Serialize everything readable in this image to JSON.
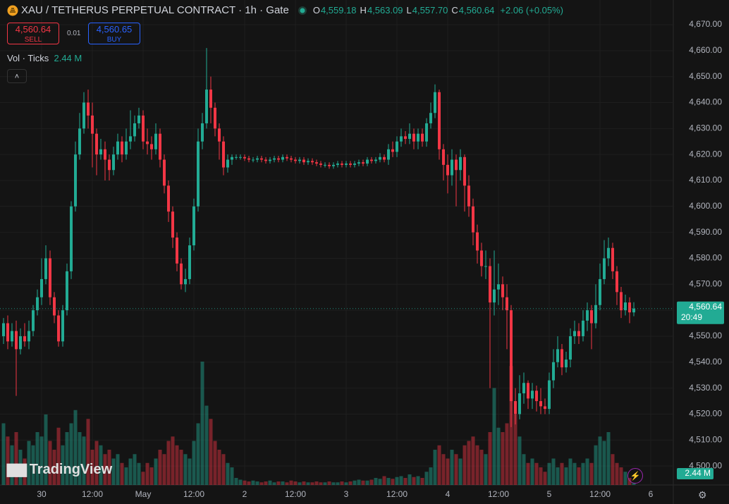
{
  "chart_data": {
    "type": "candlestick",
    "title": "XAU / TETHERUS PERPETUAL CONTRACT · 1h · Gate",
    "ohlc_labels": [
      {
        "key": "O",
        "value": "4,559.18"
      },
      {
        "key": "H",
        "value": "4,563.09"
      },
      {
        "key": "L",
        "value": "4,557.70"
      },
      {
        "key": "C",
        "value": "4,560.64"
      }
    ],
    "change_label": "+2.06 (+0.05%)",
    "volume_title": "Vol · Ticks",
    "volume_label": "2.44 M",
    "last_price_label": "4,560.64",
    "countdown": "20:49",
    "up_color": "#22ab94",
    "down_color": "#f23645",
    "grid": true,
    "ylim": [
      4492.7,
      4679.5
    ],
    "yticks": [
      {
        "value": 4500,
        "label": "4,500.00"
      },
      {
        "value": 4510,
        "label": "4,510.00"
      },
      {
        "value": 4520,
        "label": "4,520.00"
      },
      {
        "value": 4530,
        "label": "4,530.00"
      },
      {
        "value": 4540,
        "label": "4,540.00"
      },
      {
        "value": 4550,
        "label": "4,550.00"
      },
      {
        "value": 4560,
        "label": "4,560.00"
      },
      {
        "value": 4570,
        "label": "4,570.00"
      },
      {
        "value": 4580,
        "label": "4,580.00"
      },
      {
        "value": 4590,
        "label": "4,590.00"
      },
      {
        "value": 4600,
        "label": "4,600.00"
      },
      {
        "value": 4610,
        "label": "4,610.00"
      },
      {
        "value": 4620,
        "label": "4,620.00"
      },
      {
        "value": 4630,
        "label": "4,630.00"
      },
      {
        "value": 4640,
        "label": "4,640.00"
      },
      {
        "value": 4650,
        "label": "4,650.00"
      },
      {
        "value": 4660,
        "label": "4,660.00"
      },
      {
        "value": 4670,
        "label": "4,670.00"
      }
    ],
    "categories": [
      null,
      null,
      null,
      null,
      null,
      null,
      null,
      null,
      null,
      "30",
      null,
      null,
      null,
      null,
      null,
      null,
      null,
      null,
      null,
      null,
      null,
      "12:00",
      null,
      null,
      null,
      null,
      null,
      null,
      null,
      null,
      null,
      null,
      null,
      "May",
      null,
      null,
      null,
      null,
      null,
      null,
      null,
      null,
      null,
      null,
      null,
      "12:00",
      null,
      null,
      null,
      null,
      null,
      null,
      null,
      null,
      null,
      null,
      null,
      "2",
      null,
      null,
      null,
      null,
      null,
      null,
      null,
      null,
      null,
      null,
      null,
      "12:00",
      null,
      null,
      null,
      null,
      null,
      null,
      null,
      null,
      null,
      null,
      null,
      "3",
      null,
      null,
      null,
      null,
      null,
      null,
      null,
      null,
      null,
      null,
      null,
      "12:00",
      null,
      null,
      null,
      null,
      null,
      null,
      null,
      null,
      null,
      null,
      null,
      "4",
      null,
      null,
      null,
      null,
      null,
      null,
      null,
      null,
      null,
      null,
      null,
      "12:00",
      null,
      null,
      null,
      null,
      null,
      null,
      null,
      null,
      null,
      null,
      null,
      "5",
      null,
      null,
      null,
      null,
      null,
      null,
      null,
      null,
      null,
      null,
      null,
      "12:00",
      null,
      null,
      null,
      null,
      null,
      null,
      null,
      null,
      null,
      null,
      null,
      "6"
    ],
    "open": [
      4550,
      4555,
      4548,
      4552,
      4545,
      4550,
      4548,
      4552,
      4560,
      4565,
      4572,
      4580,
      4565,
      4558,
      4548,
      4560,
      4575,
      4600,
      4620,
      4630,
      4640,
      4635,
      4628,
      4620,
      4622,
      4618,
      4614,
      4620,
      4625,
      4620,
      4625,
      4627,
      4632,
      4635,
      4625,
      4624,
      4622,
      4628,
      4618,
      4608,
      4598,
      4588,
      4578,
      4570,
      4572,
      4585,
      4600,
      4625,
      4632,
      4645,
      4638,
      4630,
      4625,
      4615,
      4618,
      4619,
      4619,
      4619,
      4618.5,
      4618,
      4618,
      4618.5,
      4618,
      4617.5,
      4618,
      4618.5,
      4618,
      4619,
      4618.5,
      4618,
      4617.5,
      4618,
      4617,
      4617.5,
      4617,
      4616.5,
      4616,
      4616,
      4615.5,
      4616,
      4616.5,
      4616,
      4616.5,
      4616,
      4616.5,
      4617,
      4616.5,
      4618,
      4617.5,
      4618,
      4619,
      4618,
      4622,
      4621,
      4625,
      4627,
      4626,
      4628,
      4625,
      4628,
      4625,
      4632,
      4636,
      4644,
      4622,
      4616,
      4612,
      4618,
      4614,
      4619,
      4608,
      4600,
      4590,
      4583,
      4577,
      4577,
      4563,
      4568,
      4570,
      4565,
      4560,
      4525,
      4520,
      4528,
      4532,
      4526,
      4529,
      4525,
      4523,
      4522,
      4533,
      4540,
      4545,
      4538,
      4541,
      4550,
      4552,
      4550,
      4556,
      4560,
      4555,
      4562,
      4572,
      4580,
      4584,
      4575,
      4567,
      4560,
      4563,
      4559.18,
      null,
      null,
      null,
      null
    ],
    "high": [
      4557,
      4558,
      4555,
      4556,
      4553,
      4555,
      4556,
      4562,
      4568,
      4580,
      4585,
      4583,
      4567,
      4560,
      4562,
      4578,
      4602,
      4625,
      4636,
      4644,
      4645,
      4640,
      4630,
      4626,
      4625,
      4620,
      4623,
      4628,
      4627,
      4630,
      4637,
      4635,
      4638,
      4637,
      4630,
      4627,
      4632,
      4630,
      4620,
      4610,
      4600,
      4590,
      4580,
      4576,
      4588,
      4603,
      4630,
      4636,
      4661,
      4650,
      4640,
      4632,
      4627,
      4620,
      4620,
      4620,
      4620,
      4620,
      4619.5,
      4619,
      4619.5,
      4619.5,
      4619,
      4619,
      4619.5,
      4619.5,
      4620,
      4620,
      4619.5,
      4619,
      4619,
      4619,
      4618.5,
      4618.5,
      4618,
      4617.5,
      4617,
      4617,
      4617,
      4617.5,
      4617.5,
      4617.5,
      4617.5,
      4617.5,
      4618,
      4618,
      4619,
      4619,
      4619,
      4620.5,
      4620,
      4624,
      4625,
      4627,
      4630,
      4629,
      4632,
      4630,
      4630,
      4630,
      4634,
      4640,
      4647,
      4645,
      4624,
      4620,
      4622,
      4620,
      4622,
      4620,
      4612,
      4603,
      4593,
      4586,
      4583,
      4580,
      4583,
      4578,
      4573,
      4570,
      4562,
      4530,
      4535,
      4536,
      4533,
      4532,
      4531,
      4530,
      4526,
      4536,
      4545,
      4550,
      4547,
      4544,
      4553,
      4556,
      4555,
      4560,
      4563,
      4562,
      4570,
      4578,
      4587,
      4588,
      4586,
      4577,
      4569,
      4566,
      4565,
      4563.09,
      null,
      null,
      null,
      null
    ],
    "low": [
      4547,
      4545,
      4546,
      4527,
      4543,
      4546,
      4545,
      4550,
      4558,
      4562,
      4570,
      4562,
      4555,
      4546,
      4546,
      4558,
      4572,
      4598,
      4618,
      4628,
      4630,
      4615,
      4612,
      4618,
      4610,
      4610,
      4612,
      4618,
      4617,
      4618,
      4622,
      4625,
      4630,
      4622,
      4620,
      4618,
      4620,
      4615,
      4605,
      4594,
      4584,
      4575,
      4568,
      4567,
      4570,
      4583,
      4598,
      4622,
      4630,
      4632,
      4627,
      4618,
      4612,
      4613,
      4616,
      4618,
      4618,
      4617.5,
      4617,
      4617,
      4617,
      4617,
      4616.5,
      4616.5,
      4617,
      4617,
      4617,
      4617.5,
      4617,
      4616.5,
      4616.5,
      4616,
      4616,
      4616,
      4615.5,
      4615,
      4615,
      4614.5,
      4614.5,
      4615,
      4615,
      4615,
      4615,
      4615,
      4615.5,
      4615.5,
      4615.5,
      4616.5,
      4616.5,
      4617,
      4617,
      4616,
      4619,
      4619,
      4623,
      4624,
      4624,
      4622,
      4622,
      4623,
      4623,
      4630,
      4634,
      4618,
      4610,
      4605,
      4608,
      4600,
      4610,
      4598,
      4596,
      4585,
      4578,
      4573,
      4572,
      4530,
      4558,
      4562,
      4560,
      4545,
      4515,
      4516,
      4518,
      4524,
      4522,
      4522,
      4521,
      4520,
      4520,
      4520,
      4530,
      4538,
      4535,
      4536,
      4538,
      4547,
      4547,
      4548,
      4552,
      4545,
      4553,
      4560,
      4570,
      4577,
      4572,
      4562,
      4557,
      4558,
      4555,
      4557.7,
      null,
      null,
      null,
      null
    ],
    "close": [
      4555,
      4548,
      4552,
      4545,
      4550,
      4548,
      4552,
      4560,
      4565,
      4572,
      4580,
      4565,
      4558,
      4548,
      4560,
      4575,
      4600,
      4620,
      4630,
      4640,
      4635,
      4628,
      4620,
      4622,
      4618,
      4614,
      4620,
      4625,
      4620,
      4625,
      4627,
      4632,
      4635,
      4625,
      4624,
      4622,
      4628,
      4618,
      4608,
      4598,
      4588,
      4578,
      4570,
      4572,
      4585,
      4600,
      4625,
      4632,
      4645,
      4638,
      4630,
      4625,
      4615,
      4618,
      4619,
      4619,
      4619,
      4618.5,
      4618,
      4618,
      4618.5,
      4618,
      4617.5,
      4618,
      4618.5,
      4618,
      4619,
      4618.5,
      4618,
      4617.5,
      4618,
      4617,
      4617.5,
      4617,
      4616.5,
      4616,
      4616,
      4615.5,
      4616,
      4616.5,
      4616,
      4616.5,
      4616,
      4616.5,
      4617,
      4616.5,
      4618,
      4617.5,
      4618,
      4619,
      4618,
      4622,
      4621,
      4625,
      4627,
      4626,
      4628,
      4625,
      4628,
      4625,
      4632,
      4636,
      4644,
      4622,
      4616,
      4612,
      4618,
      4614,
      4619,
      4608,
      4600,
      4590,
      4583,
      4577,
      4577,
      4563,
      4568,
      4570,
      4565,
      4560,
      4525,
      4520,
      4528,
      4532,
      4526,
      4529,
      4525,
      4523,
      4522,
      4533,
      4540,
      4545,
      4538,
      4541,
      4550,
      4552,
      4550,
      4556,
      4560,
      4555,
      4562,
      4572,
      4580,
      4584,
      4575,
      4567,
      4560,
      4563,
      4559.18,
      4560.64,
      null,
      null,
      null,
      null
    ],
    "volume": [
      70,
      55,
      45,
      60,
      40,
      30,
      50,
      45,
      60,
      55,
      80,
      50,
      40,
      65,
      45,
      60,
      70,
      85,
      60,
      55,
      75,
      40,
      50,
      45,
      35,
      40,
      30,
      35,
      25,
      20,
      30,
      35,
      25,
      15,
      25,
      20,
      30,
      40,
      35,
      50,
      55,
      45,
      40,
      35,
      30,
      50,
      70,
      140,
      90,
      75,
      50,
      40,
      35,
      25,
      20,
      8,
      6,
      5,
      4,
      5,
      4,
      3,
      4,
      5,
      3,
      4,
      4,
      3,
      5,
      4,
      3,
      4,
      3,
      3,
      4,
      3,
      3,
      4,
      3,
      3,
      4,
      3,
      4,
      5,
      6,
      5,
      5,
      6,
      8,
      7,
      10,
      8,
      7,
      9,
      10,
      8,
      12,
      9,
      10,
      8,
      15,
      20,
      40,
      45,
      35,
      30,
      40,
      35,
      30,
      45,
      50,
      55,
      45,
      40,
      35,
      60,
      110,
      65,
      60,
      70,
      135,
      80,
      55,
      35,
      25,
      30,
      25,
      20,
      15,
      25,
      30,
      20,
      25,
      20,
      30,
      25,
      20,
      25,
      30,
      25,
      45,
      55,
      50,
      60,
      35,
      25,
      20,
      15,
      8,
      2.44,
      null,
      null,
      null,
      null
    ]
  },
  "trade": {
    "sell_price": "4,560.64",
    "sell": "SELL",
    "quantity": "0.01",
    "buy_price": "4,560.65",
    "buy": "BUY"
  },
  "logo": "TradingView"
}
